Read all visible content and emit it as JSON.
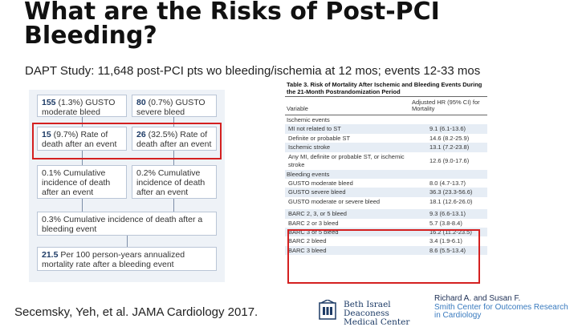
{
  "slide": {
    "title": "What are the Risks of Post-PCI Bleeding?",
    "subtitle": "DAPT Study: 11,648 post-PCI pts wo bleeding/ischemia at 12 mos; events 12-33 mos",
    "footer": "Secemsky, Yeh, et al. JAMA Cardiology 2017."
  },
  "flowchart": {
    "box1": {
      "num": "155",
      "text": "(1.3%) GUSTO moderate bleed"
    },
    "box2": {
      "num": "80",
      "text": "(0.7%) GUSTO severe bleed"
    },
    "box3": {
      "num": "15",
      "text": "(9.7%) Rate of death after an event"
    },
    "box4": {
      "num": "26",
      "text": "(32.5%) Rate of death after an event"
    },
    "box5": {
      "text": "0.1% Cumulative incidence of death after an event"
    },
    "box6": {
      "text": "0.2% Cumulative incidence of death after an event"
    },
    "box7": {
      "text": "0.3% Cumulative incidence of death after a bleeding event"
    },
    "box8": {
      "num": "21.5",
      "text": "Per 100 person-years annualized mortality rate after a bleeding event"
    }
  },
  "table": {
    "title": "Table 3. Risk of Mortality After Ischemic and Bleeding Events During the 21-Month Postrandomization Period",
    "col1": "Variable",
    "col2": "Adjusted HR (95% CI) for Mortality",
    "sections": [
      {
        "label": "Ischemic events",
        "rows": [
          {
            "name": "MI not related to ST",
            "hr": "9.1 (6.1-13.6)"
          },
          {
            "name": "Definite or probable ST",
            "hr": "14.6 (8.2-25.9)"
          },
          {
            "name": "Ischemic stroke",
            "hr": "13.1 (7.2-23.8)"
          },
          {
            "name": "Any MI, definite or probable ST, or ischemic stroke",
            "hr": "12.6 (9.0-17.6)"
          }
        ]
      },
      {
        "label": "Bleeding events",
        "rows": [
          {
            "name": "GUSTO moderate bleed",
            "hr": "8.0 (4.7-13.7)"
          },
          {
            "name": "GUSTO severe bleed",
            "hr": "36.3 (23.3-56.6)"
          },
          {
            "name": "GUSTO moderate or severe bleed",
            "hr": "18.1 (12.6-26.0)"
          },
          {
            "name": "BARC 2, 3, or 5 bleed",
            "hr": "9.3 (6.6-13.1)"
          },
          {
            "name": "BARC 2 or 3 bleed",
            "hr": "5.7 (3.8-8.4)"
          },
          {
            "name": "BARC 3 or 5 bleed",
            "hr": "16.2 (11.2-23.5)"
          },
          {
            "name": "BARC 2 bleed",
            "hr": "3.4 (1.9-6.1)"
          },
          {
            "name": "BARC 3 bleed",
            "hr": "8.6 (5.5-13.4)"
          }
        ]
      }
    ]
  },
  "logos": {
    "bidmc": [
      "Beth Israel Deaconess",
      "Medical Center"
    ],
    "smith": [
      "Richard A. and Susan F.",
      "Smith Center for Outcomes Research",
      "in Cardiology"
    ]
  },
  "colors": {
    "highlight": "#d42020",
    "navy": "#1d3b66",
    "accent_blue": "#3a7bbf"
  }
}
